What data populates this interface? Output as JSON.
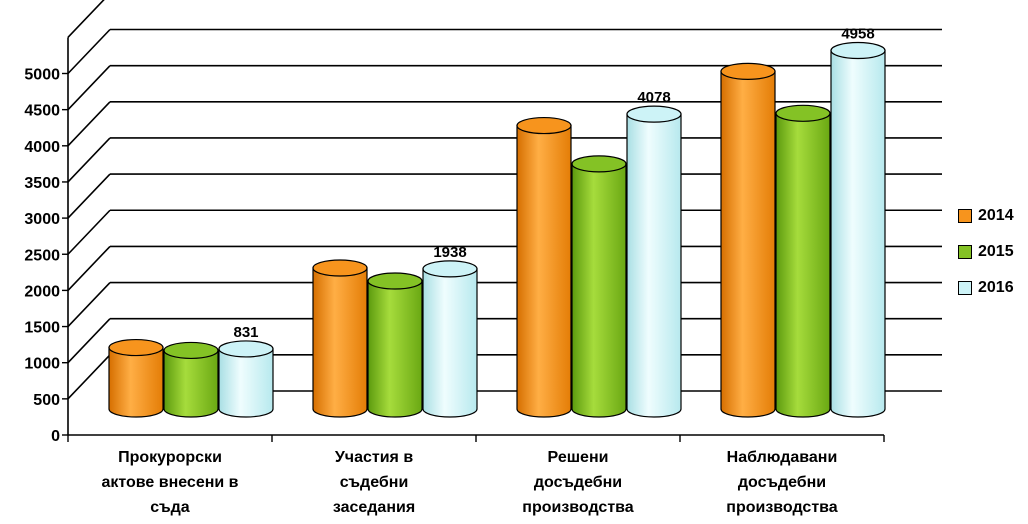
{
  "chart_data": {
    "type": "bar",
    "categories": [
      [
        "Прокурорски",
        "актове внесени в",
        "съда"
      ],
      [
        "Участия в",
        "съдебни",
        "заседания"
      ],
      [
        "Решени",
        "досъдебни",
        "производства"
      ],
      [
        "Наблюдавани",
        "досъдебни",
        "производства"
      ]
    ],
    "series": [
      {
        "name": "2014",
        "color": "#f7941d",
        "values": [
          850,
          1950,
          3920,
          4670
        ]
      },
      {
        "name": "2015",
        "color": "#84c225",
        "values": [
          810,
          1770,
          3390,
          4090
        ]
      },
      {
        "name": "2016",
        "color": "#cdf3f7",
        "values": [
          831,
          1938,
          4078,
          4958
        ]
      }
    ],
    "data_labels": [
      {
        "category": 0,
        "series": 2,
        "text": "831"
      },
      {
        "category": 1,
        "series": 2,
        "text": "1938"
      },
      {
        "category": 2,
        "series": 2,
        "text": "4078"
      },
      {
        "category": 3,
        "series": 2,
        "text": "4958"
      }
    ],
    "yticks": [
      "0",
      "500",
      "1000",
      "1500",
      "2000",
      "2500",
      "3000",
      "3500",
      "4000",
      "4500",
      "5000"
    ],
    "ylim": [
      0,
      5000
    ],
    "grid": true,
    "legend": "right",
    "title": "",
    "xlabel": "",
    "ylabel": ""
  }
}
